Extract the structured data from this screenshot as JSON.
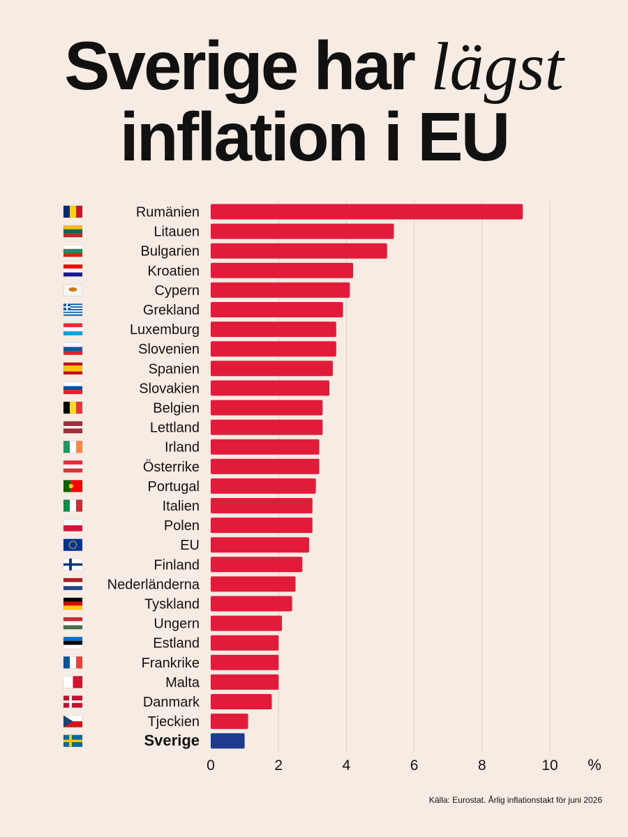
{
  "title": {
    "line1_pre": "Sverige har",
    "line1_emph": "lägst",
    "line2": "inflation i EU"
  },
  "source": "Källa: Eurostat. Årlig inflationstakt för juni 2026",
  "chart_data": {
    "type": "bar",
    "orientation": "horizontal",
    "categories": [
      "Rumänien",
      "Litauen",
      "Bulgarien",
      "Kroatien",
      "Cypern",
      "Grekland",
      "Luxemburg",
      "Slovenien",
      "Spanien",
      "Slovakien",
      "Belgien",
      "Lettland",
      "Irland",
      "Österrike",
      "Portugal",
      "Italien",
      "Polen",
      "EU",
      "Finland",
      "Nederländerna",
      "Tyskland",
      "Ungern",
      "Estland",
      "Frankrike",
      "Malta",
      "Danmark",
      "Tjeckien",
      "Sverige"
    ],
    "values": [
      9.2,
      5.4,
      5.2,
      4.2,
      4.1,
      3.9,
      3.7,
      3.7,
      3.6,
      3.5,
      3.3,
      3.3,
      3.2,
      3.2,
      3.1,
      3.0,
      3.0,
      2.9,
      2.7,
      2.5,
      2.4,
      2.1,
      2.0,
      2.0,
      2.0,
      1.8,
      1.1,
      1.0
    ],
    "highlight": "Sverige",
    "bar_color": "#e31b3b",
    "highlight_color": "#1d3a8f",
    "xlim": [
      0,
      10
    ],
    "xticks": [
      "0",
      "2",
      "4",
      "6",
      "8",
      "10"
    ],
    "unit": "%",
    "grid": true
  },
  "flags": {
    "Rumänien": {
      "type": "v",
      "colors": [
        "#002b7f",
        "#fcd116",
        "#ce1126"
      ]
    },
    "Litauen": {
      "type": "h",
      "colors": [
        "#fdb913",
        "#006a44",
        "#c1272d"
      ]
    },
    "Bulgarien": {
      "type": "h",
      "colors": [
        "#ffffff",
        "#00966e",
        "#d62612"
      ]
    },
    "Kroatien": {
      "type": "h",
      "colors": [
        "#ff0000",
        "#ffffff",
        "#171796"
      ]
    },
    "Cypern": {
      "type": "solid",
      "colors": [
        "#f4f4f4",
        "#d57800"
      ]
    },
    "Grekland": {
      "type": "stripes9",
      "colors": [
        "#0d5eaf",
        "#ffffff"
      ]
    },
    "Luxemburg": {
      "type": "h",
      "colors": [
        "#ed2939",
        "#ffffff",
        "#00a1de"
      ]
    },
    "Slovenien": {
      "type": "h",
      "colors": [
        "#ffffff",
        "#005da4",
        "#ed1c24"
      ]
    },
    "Spanien": {
      "type": "h121",
      "colors": [
        "#c60b1e",
        "#ffc400",
        "#c60b1e"
      ]
    },
    "Slovakien": {
      "type": "h",
      "colors": [
        "#ffffff",
        "#0b4ea2",
        "#ee1c25"
      ]
    },
    "Belgien": {
      "type": "v",
      "colors": [
        "#000000",
        "#fdda24",
        "#ef3340"
      ]
    },
    "Lettland": {
      "type": "h212",
      "colors": [
        "#9e3039",
        "#ffffff",
        "#9e3039"
      ]
    },
    "Irland": {
      "type": "v",
      "colors": [
        "#169b62",
        "#ffffff",
        "#ff883e"
      ]
    },
    "Österrike": {
      "type": "h",
      "colors": [
        "#ed2939",
        "#ffffff",
        "#ed2939"
      ]
    },
    "Portugal": {
      "type": "v23",
      "colors": [
        "#006600",
        "#ff0000",
        "#ffcc00"
      ]
    },
    "Italien": {
      "type": "v",
      "colors": [
        "#009246",
        "#ffffff",
        "#ce2b37"
      ]
    },
    "Polen": {
      "type": "h2",
      "colors": [
        "#ffffff",
        "#dc143c"
      ]
    },
    "EU": {
      "type": "eu",
      "colors": [
        "#003399",
        "#ffcc00"
      ]
    },
    "Finland": {
      "type": "nordic",
      "colors": [
        "#ffffff",
        "#003580"
      ]
    },
    "Nederländerna": {
      "type": "h",
      "colors": [
        "#ae1c28",
        "#ffffff",
        "#21468b"
      ]
    },
    "Tyskland": {
      "type": "h",
      "colors": [
        "#000000",
        "#dd0000",
        "#ffce00"
      ]
    },
    "Ungern": {
      "type": "h",
      "colors": [
        "#ce2939",
        "#ffffff",
        "#477050"
      ]
    },
    "Estland": {
      "type": "h",
      "colors": [
        "#0072ce",
        "#000000",
        "#ffffff"
      ]
    },
    "Frankrike": {
      "type": "v",
      "colors": [
        "#0055a4",
        "#ffffff",
        "#ef4135"
      ]
    },
    "Malta": {
      "type": "v2",
      "colors": [
        "#ffffff",
        "#cf142b"
      ]
    },
    "Danmark": {
      "type": "nordic",
      "colors": [
        "#c8102e",
        "#ffffff"
      ]
    },
    "Tjeckien": {
      "type": "cz",
      "colors": [
        "#ffffff",
        "#d7141a",
        "#11457e"
      ]
    },
    "Sverige": {
      "type": "nordic",
      "colors": [
        "#006aa7",
        "#fecc00"
      ]
    }
  }
}
